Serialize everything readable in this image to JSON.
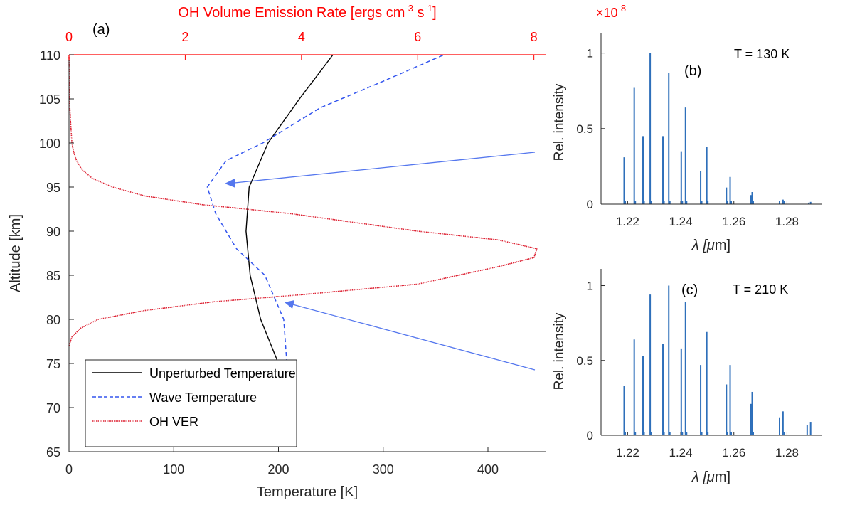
{
  "colors": {
    "axis": "#262626",
    "temperature": "#000000",
    "wave": "#3355ee",
    "oh": "#dd2233",
    "spectral_lines": "#2e6fba",
    "arrow": "#5577ee",
    "top_axis": "#ff0000"
  },
  "chart_data": [
    {
      "panel": "(a)",
      "type": "line",
      "xlabel": "Temperature [K]",
      "ylabel": "Altitude [km]",
      "xlim": [
        0,
        455
      ],
      "ylim": [
        65,
        110
      ],
      "xticks": [
        0,
        100,
        200,
        300,
        400
      ],
      "yticks": [
        65,
        70,
        75,
        80,
        85,
        90,
        95,
        100,
        105,
        110
      ],
      "top_axis": {
        "label_main": "OH Volume Emission Rate [ergs cm",
        "label_sup1": "-3",
        "label_mid": " s",
        "label_sup2": "-1",
        "label_end": "]",
        "xlim": [
          0,
          8.2
        ],
        "ticks": [
          0,
          2,
          4,
          6,
          8
        ]
      },
      "legend_position": "bottom-left",
      "series": [
        {
          "name": "Unperturbed Temperature",
          "axis": "bottom",
          "style": "solid",
          "points": [
            [
              200,
              75
            ],
            [
              183,
              80
            ],
            [
              173,
              85
            ],
            [
              169,
              90
            ],
            [
              172,
              95
            ],
            [
              190,
              100
            ],
            [
              220,
              105
            ],
            [
              252,
              110
            ]
          ]
        },
        {
          "name": "Wave Temperature",
          "axis": "bottom",
          "style": "dashed",
          "points": [
            [
              208,
              75
            ],
            [
              205,
              80
            ],
            [
              187,
              85
            ],
            [
              160,
              88
            ],
            [
              140,
              92
            ],
            [
              132,
              95
            ],
            [
              150,
              98
            ],
            [
              185,
              100
            ],
            [
              240,
              104
            ],
            [
              300,
              107
            ],
            [
              358,
              110
            ]
          ]
        },
        {
          "name": "OH VER",
          "axis": "top",
          "style": "dotted-line",
          "points": [
            [
              0,
              77
            ],
            [
              0.05,
              78
            ],
            [
              0.2,
              79
            ],
            [
              0.5,
              80
            ],
            [
              1.3,
              81
            ],
            [
              2.5,
              82
            ],
            [
              4,
              82.8
            ],
            [
              6,
              84
            ],
            [
              7.4,
              86
            ],
            [
              8.0,
              87
            ],
            [
              8.05,
              88
            ],
            [
              7.4,
              89
            ],
            [
              6,
              90
            ],
            [
              3.8,
              92
            ],
            [
              2.3,
              93
            ],
            [
              1.3,
              94
            ],
            [
              0.75,
              95
            ],
            [
              0.4,
              96
            ],
            [
              0.22,
              97
            ],
            [
              0.13,
              98
            ],
            [
              0.08,
              99
            ],
            [
              0.05,
              100
            ],
            [
              0.03,
              102
            ],
            [
              0.015,
              104
            ],
            [
              0.005,
              107
            ],
            [
              0,
              110
            ]
          ]
        }
      ]
    },
    {
      "panel": "(b)",
      "type": "bar",
      "title": "T = 130 K",
      "xlabel_main": "λ [",
      "xlabel_mu": "μ",
      "xlabel_end": "m]",
      "ylabel": "Rel. intensity",
      "exponent_prefix": "×10",
      "exponent_sup": "-8",
      "xlim": [
        1.21,
        1.293
      ],
      "ylim": [
        0,
        1.05
      ],
      "xticks": [
        "1.22",
        "1.24",
        "1.26",
        "1.28"
      ],
      "yticks": [
        "0",
        "0.5",
        "1"
      ],
      "lines": [
        [
          1.2187,
          0.31
        ],
        [
          1.2191,
          0.02
        ],
        [
          1.2225,
          0.77
        ],
        [
          1.2229,
          0.02
        ],
        [
          1.2258,
          0.45
        ],
        [
          1.2262,
          0.02
        ],
        [
          1.2285,
          1.0
        ],
        [
          1.2289,
          0.02
        ],
        [
          1.2333,
          0.45
        ],
        [
          1.2337,
          0.02
        ],
        [
          1.2355,
          0.87
        ],
        [
          1.2359,
          0.02
        ],
        [
          1.2402,
          0.35
        ],
        [
          1.2406,
          0.02
        ],
        [
          1.2418,
          0.64
        ],
        [
          1.2422,
          0.02
        ],
        [
          1.2475,
          0.22
        ],
        [
          1.2479,
          0.02
        ],
        [
          1.2498,
          0.38
        ],
        [
          1.2502,
          0.02
        ],
        [
          1.2572,
          0.11
        ],
        [
          1.2576,
          0.02
        ],
        [
          1.2586,
          0.18
        ],
        [
          1.259,
          0.02
        ],
        [
          1.2664,
          0.06
        ],
        [
          1.2669,
          0.08
        ],
        [
          1.2673,
          0.02
        ],
        [
          1.2772,
          0.02
        ],
        [
          1.2785,
          0.03
        ],
        [
          1.279,
          0.02
        ],
        [
          1.2882,
          0.01
        ],
        [
          1.2889,
          0.015
        ]
      ]
    },
    {
      "panel": "(c)",
      "type": "bar",
      "title": "T = 210 K",
      "xlabel_main": "λ [",
      "xlabel_mu": "μ",
      "xlabel_end": "m]",
      "ylabel": "Rel. intensity",
      "xlim": [
        1.21,
        1.293
      ],
      "ylim": [
        0,
        1.05
      ],
      "xticks": [
        "1.22",
        "1.24",
        "1.26",
        "1.28"
      ],
      "yticks": [
        "0",
        "0.5",
        "1"
      ],
      "lines": [
        [
          1.2187,
          0.33
        ],
        [
          1.2191,
          0.02
        ],
        [
          1.2225,
          0.64
        ],
        [
          1.2229,
          0.02
        ],
        [
          1.2258,
          0.53
        ],
        [
          1.2262,
          0.02
        ],
        [
          1.2285,
          0.94
        ],
        [
          1.2289,
          0.02
        ],
        [
          1.2333,
          0.61
        ],
        [
          1.2337,
          0.02
        ],
        [
          1.2355,
          1.0
        ],
        [
          1.2359,
          0.02
        ],
        [
          1.2402,
          0.58
        ],
        [
          1.2406,
          0.02
        ],
        [
          1.2418,
          0.89
        ],
        [
          1.2422,
          0.02
        ],
        [
          1.2475,
          0.47
        ],
        [
          1.2479,
          0.02
        ],
        [
          1.2498,
          0.69
        ],
        [
          1.2502,
          0.02
        ],
        [
          1.2572,
          0.34
        ],
        [
          1.2576,
          0.02
        ],
        [
          1.2586,
          0.47
        ],
        [
          1.259,
          0.02
        ],
        [
          1.2664,
          0.21
        ],
        [
          1.2669,
          0.29
        ],
        [
          1.2673,
          0.02
        ],
        [
          1.2772,
          0.12
        ],
        [
          1.2785,
          0.16
        ],
        [
          1.279,
          0.02
        ],
        [
          1.2876,
          0.07
        ],
        [
          1.2889,
          0.09
        ]
      ]
    }
  ]
}
